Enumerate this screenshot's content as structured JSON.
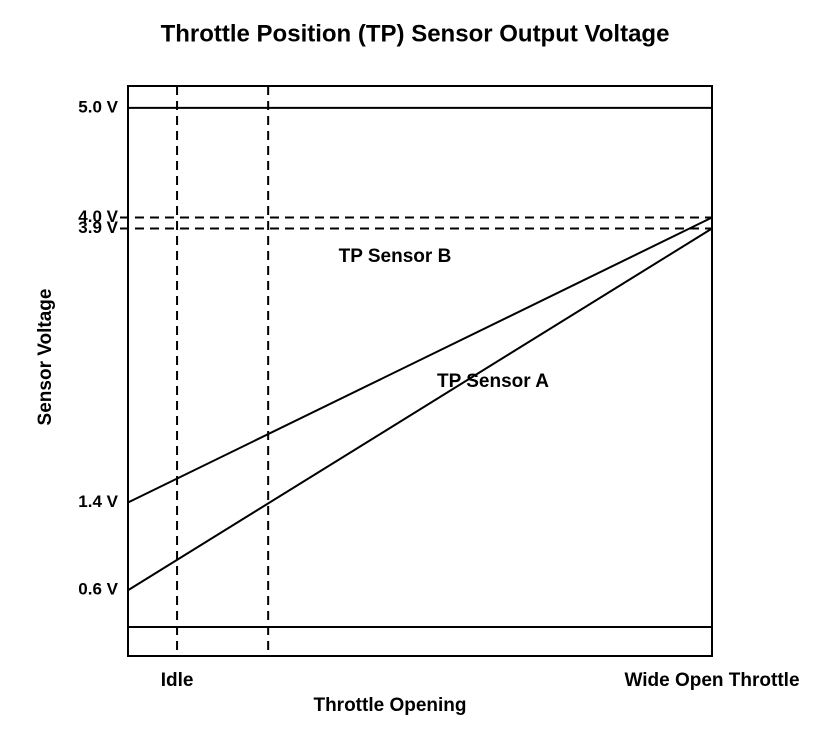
{
  "chart_data": {
    "type": "line",
    "title": "Throttle Position (TP) Sensor Output Voltage",
    "x_label": "Throttle Opening",
    "y_label": "Sensor Voltage",
    "x": [
      0,
      100
    ],
    "xlim": [
      0,
      100
    ],
    "xticks": [
      {
        "value": 8.4,
        "label": "Idle"
      },
      {
        "value": 24,
        "label": null
      },
      {
        "value": 100,
        "label": "Wide Open Throttle"
      }
    ],
    "ylim": [
      0,
      5.2
    ],
    "yticks": [
      {
        "value": 0.6,
        "label": "0.6 V",
        "style": "none"
      },
      {
        "value": 1.4,
        "label": "1.4 V",
        "style": "none"
      },
      {
        "value": 3.9,
        "label": "3.9 V",
        "style": "dashed"
      },
      {
        "value": 4.0,
        "label": "4.0 V",
        "style": "dashed"
      },
      {
        "value": 5.0,
        "label": "5.0 V",
        "style": "solid"
      }
    ],
    "series": [
      {
        "name": "TP Sensor A",
        "color": "#000000",
        "values": [
          0.6,
          3.9
        ]
      },
      {
        "name": "TP Sensor B",
        "color": "#000000",
        "values": [
          1.4,
          4.0
        ]
      }
    ]
  }
}
